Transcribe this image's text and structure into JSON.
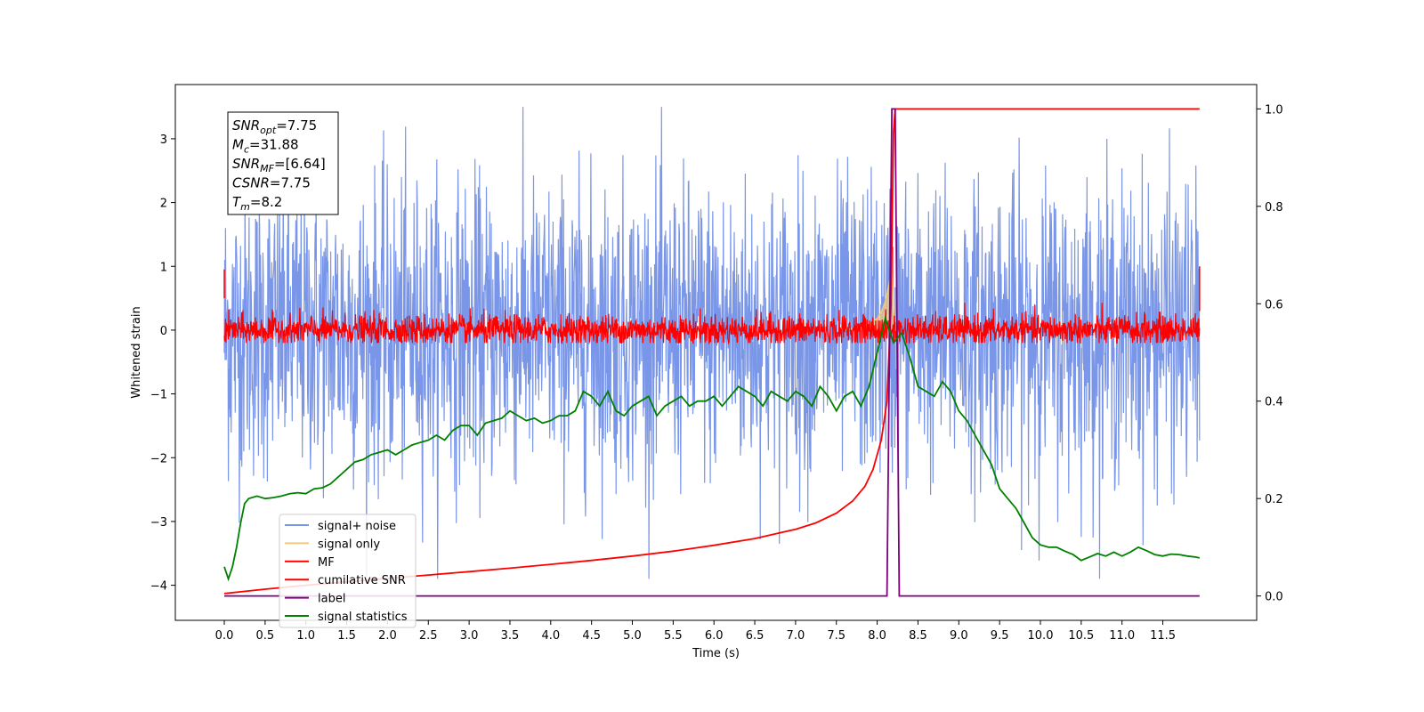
{
  "chart_data": {
    "type": "line",
    "xlabel": "Time (s)",
    "ylabel": "Whitened strain",
    "xlim": [
      -0.6,
      12.65
    ],
    "ylim": [
      -4.55,
      3.85
    ],
    "y2lim": [
      -0.05,
      1.05
    ],
    "xticks": [
      "0.0",
      "0.5",
      "1.0",
      "1.5",
      "2.0",
      "2.5",
      "3.0",
      "3.5",
      "4.0",
      "4.5",
      "5.0",
      "5.5",
      "6.0",
      "6.5",
      "7.0",
      "7.5",
      "8.0",
      "8.5",
      "9.0",
      "9.5",
      "10.0",
      "10.5",
      "11.0",
      "11.5"
    ],
    "yticks": [
      "-4",
      "-3",
      "-2",
      "-1",
      "0",
      "1",
      "2",
      "3"
    ],
    "y2ticks": [
      "0.0",
      "0.2",
      "0.4",
      "0.6",
      "0.8",
      "1.0"
    ],
    "info_box": {
      "lines": [
        {
          "sym": "SNR",
          "sub": "opt",
          "val": "=7.75"
        },
        {
          "sym": "M",
          "sub": "c",
          "val": "=31.88"
        },
        {
          "sym": "SNR",
          "sub": "MF",
          "val": "=[6.64]"
        },
        {
          "sym": "CSNR",
          "sub": "",
          "val": "=7.75"
        },
        {
          "sym": "T",
          "sub": "m",
          "val": "=8.2"
        }
      ]
    },
    "legend": {
      "position": "lower-left",
      "entries": [
        {
          "label": "signal+ noise",
          "color": "#7a96e8"
        },
        {
          "label": "signal only",
          "color": "#f5c87a"
        },
        {
          "label": "MF",
          "color": "#ff0000"
        },
        {
          "label": "cumilative SNR",
          "color": "#ff0000"
        },
        {
          "label": "label",
          "color": "#800080"
        },
        {
          "label": "signal statistics",
          "color": "#008000"
        }
      ]
    },
    "series": [
      {
        "name": "signal+ noise",
        "axis": "left",
        "color": "#7a96e8",
        "description": "noise band",
        "x_range": [
          0.0,
          11.95
        ],
        "band_min": -2.5,
        "band_max": 2.5,
        "peak_max": 3.5,
        "peak_min": -3.9
      },
      {
        "name": "signal only",
        "axis": "left",
        "color": "#f5c87a",
        "x": [
          7.6,
          7.8,
          7.9,
          8.0,
          8.05,
          8.1,
          8.15,
          8.18,
          8.2,
          8.22
        ],
        "y": [
          0.0,
          0.05,
          0.1,
          0.18,
          0.28,
          0.45,
          0.75,
          0.95,
          0.3,
          0.0
        ]
      },
      {
        "name": "MF",
        "axis": "left",
        "color": "#ff0000",
        "x_range": [
          0.0,
          11.95
        ],
        "band_min": -0.2,
        "band_max": 0.3,
        "peak_max": 0.6
      },
      {
        "name": "cumilative SNR",
        "axis": "right",
        "color": "#ff0000",
        "x": [
          0.0,
          0.5,
          1.0,
          1.5,
          2.0,
          2.5,
          3.0,
          3.5,
          4.0,
          4.5,
          5.0,
          5.5,
          6.0,
          6.5,
          7.0,
          7.25,
          7.5,
          7.7,
          7.85,
          7.95,
          8.05,
          8.12,
          8.17,
          8.2,
          8.22,
          9.0,
          10.0,
          11.0,
          11.95
        ],
        "y": [
          0.005,
          0.014,
          0.022,
          0.029,
          0.036,
          0.043,
          0.05,
          0.057,
          0.065,
          0.073,
          0.082,
          0.092,
          0.104,
          0.118,
          0.137,
          0.15,
          0.17,
          0.195,
          0.225,
          0.26,
          0.32,
          0.4,
          0.6,
          0.95,
          1.0,
          1.0,
          1.0,
          1.0,
          1.0
        ]
      },
      {
        "name": "label",
        "axis": "right",
        "color": "#800080",
        "x": [
          0.0,
          8.12,
          8.18,
          8.22,
          8.27,
          11.95
        ],
        "y": [
          0.0,
          0.0,
          1.0,
          1.0,
          0.0,
          0.0
        ]
      },
      {
        "name": "signal statistics",
        "axis": "right",
        "color": "#008000",
        "x": [
          0.0,
          0.05,
          0.1,
          0.15,
          0.2,
          0.25,
          0.3,
          0.4,
          0.5,
          0.6,
          0.7,
          0.8,
          0.9,
          1.0,
          1.1,
          1.2,
          1.3,
          1.4,
          1.5,
          1.6,
          1.7,
          1.8,
          1.9,
          2.0,
          2.1,
          2.2,
          2.3,
          2.4,
          2.5,
          2.6,
          2.7,
          2.8,
          2.9,
          3.0,
          3.1,
          3.2,
          3.3,
          3.4,
          3.5,
          3.6,
          3.7,
          3.8,
          3.9,
          4.0,
          4.1,
          4.2,
          4.3,
          4.4,
          4.5,
          4.6,
          4.7,
          4.8,
          4.9,
          5.0,
          5.1,
          5.2,
          5.3,
          5.4,
          5.5,
          5.6,
          5.7,
          5.8,
          5.9,
          6.0,
          6.1,
          6.2,
          6.3,
          6.4,
          6.5,
          6.6,
          6.7,
          6.8,
          6.9,
          7.0,
          7.1,
          7.2,
          7.3,
          7.4,
          7.5,
          7.6,
          7.7,
          7.8,
          7.9,
          8.0,
          8.1,
          8.2,
          8.3,
          8.4,
          8.5,
          8.6,
          8.7,
          8.8,
          8.9,
          9.0,
          9.1,
          9.2,
          9.3,
          9.4,
          9.5,
          9.6,
          9.7,
          9.8,
          9.9,
          10.0,
          10.1,
          10.2,
          10.3,
          10.4,
          10.5,
          10.6,
          10.7,
          10.8,
          10.9,
          11.0,
          11.1,
          11.2,
          11.3,
          11.4,
          11.5,
          11.6,
          11.7,
          11.8,
          11.9,
          11.95
        ],
        "y": [
          0.06,
          0.035,
          0.06,
          0.1,
          0.15,
          0.19,
          0.2,
          0.205,
          0.2,
          0.202,
          0.205,
          0.21,
          0.212,
          0.21,
          0.22,
          0.222,
          0.23,
          0.245,
          0.26,
          0.275,
          0.28,
          0.29,
          0.295,
          0.3,
          0.29,
          0.3,
          0.31,
          0.315,
          0.32,
          0.33,
          0.32,
          0.34,
          0.35,
          0.35,
          0.33,
          0.355,
          0.36,
          0.365,
          0.38,
          0.37,
          0.36,
          0.365,
          0.355,
          0.36,
          0.37,
          0.37,
          0.38,
          0.42,
          0.41,
          0.39,
          0.42,
          0.38,
          0.37,
          0.39,
          0.4,
          0.41,
          0.37,
          0.39,
          0.4,
          0.41,
          0.39,
          0.4,
          0.4,
          0.41,
          0.39,
          0.41,
          0.43,
          0.42,
          0.41,
          0.39,
          0.42,
          0.41,
          0.4,
          0.42,
          0.41,
          0.39,
          0.43,
          0.41,
          0.38,
          0.41,
          0.42,
          0.39,
          0.43,
          0.5,
          0.57,
          0.52,
          0.54,
          0.49,
          0.43,
          0.42,
          0.41,
          0.44,
          0.42,
          0.38,
          0.36,
          0.33,
          0.3,
          0.27,
          0.22,
          0.2,
          0.18,
          0.15,
          0.12,
          0.105,
          0.1,
          0.1,
          0.092,
          0.085,
          0.073,
          0.08,
          0.087,
          0.082,
          0.09,
          0.082,
          0.09,
          0.1,
          0.093,
          0.085,
          0.082,
          0.086,
          0.085,
          0.082,
          0.08,
          0.078
        ]
      }
    ]
  }
}
